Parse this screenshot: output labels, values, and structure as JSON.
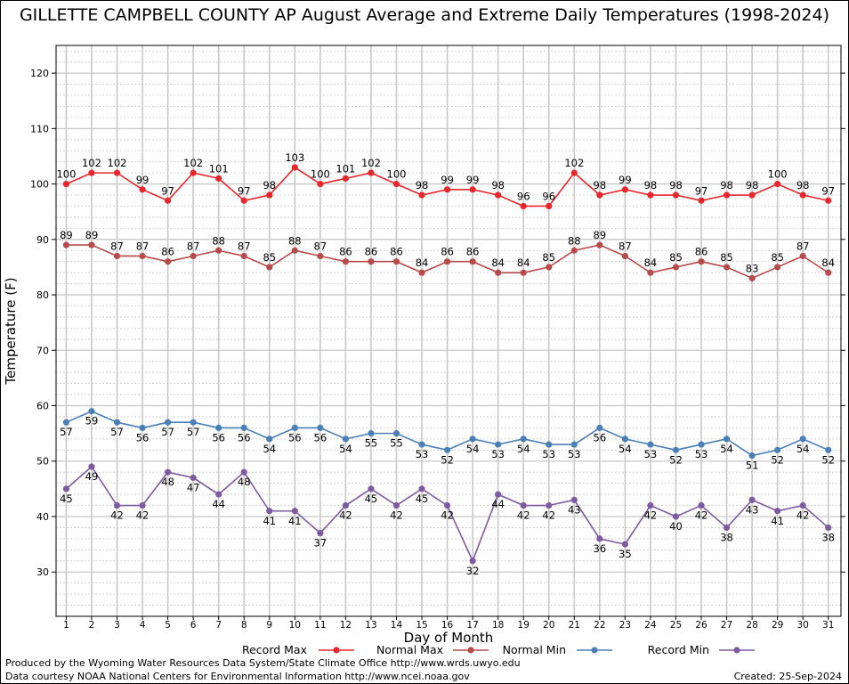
{
  "title": "GILLETTE CAMPBELL COUNTY AP August Average and Extreme Daily Temperatures (1998-2024)",
  "footer": {
    "produced_by": "Produced by the Wyoming Water Resources Data System/State Climate Office http://www.wrds.uwyo.edu",
    "courtesy": "Data courtesy NOAA National Centers for Environmental Information http://www.ncei.noaa.gov",
    "created": "Created:  25-Sep-2024"
  },
  "chart_data": {
    "type": "line",
    "xlabel": "Day of Month",
    "ylabel": "Temperature (F)",
    "xlim": [
      0.6,
      31.5
    ],
    "ylim": [
      22,
      125
    ],
    "y_ticks": [
      30,
      40,
      50,
      60,
      70,
      80,
      90,
      100,
      110,
      120
    ],
    "grid": true,
    "legend_position": "bottom",
    "x": [
      1,
      2,
      3,
      4,
      5,
      6,
      7,
      8,
      9,
      10,
      11,
      12,
      13,
      14,
      15,
      16,
      17,
      18,
      19,
      20,
      21,
      22,
      23,
      24,
      25,
      26,
      27,
      28,
      29,
      30,
      31
    ],
    "series": [
      {
        "name": "Record Max",
        "color": "#e8262b",
        "label_pos": "above",
        "values": [
          100,
          102,
          102,
          99,
          97,
          102,
          101,
          97,
          98,
          103,
          100,
          101,
          102,
          100,
          98,
          99,
          99,
          98,
          96,
          96,
          102,
          98,
          99,
          98,
          98,
          97,
          98,
          98,
          100,
          98,
          97
        ]
      },
      {
        "name": "Normal Max",
        "color": "#b84a4a",
        "label_pos": "above",
        "values": [
          89,
          89,
          87,
          87,
          86,
          87,
          88,
          87,
          85,
          88,
          87,
          86,
          86,
          86,
          84,
          86,
          86,
          84,
          84,
          85,
          88,
          89,
          87,
          84,
          85,
          86,
          85,
          83,
          85,
          87,
          84
        ]
      },
      {
        "name": "Normal Min",
        "color": "#4a7fb8",
        "label_pos": "below",
        "values": [
          57,
          59,
          57,
          56,
          57,
          57,
          56,
          56,
          54,
          56,
          56,
          54,
          55,
          55,
          53,
          52,
          54,
          53,
          54,
          53,
          53,
          56,
          54,
          53,
          52,
          53,
          54,
          51,
          52,
          54,
          52
        ]
      },
      {
        "name": "Record Min",
        "color": "#7e5aa0",
        "label_pos": "below",
        "values": [
          45,
          49,
          42,
          42,
          48,
          47,
          44,
          48,
          41,
          41,
          37,
          42,
          45,
          42,
          45,
          42,
          32,
          44,
          42,
          42,
          43,
          36,
          35,
          42,
          40,
          42,
          38,
          43,
          41,
          42,
          38
        ]
      }
    ]
  }
}
